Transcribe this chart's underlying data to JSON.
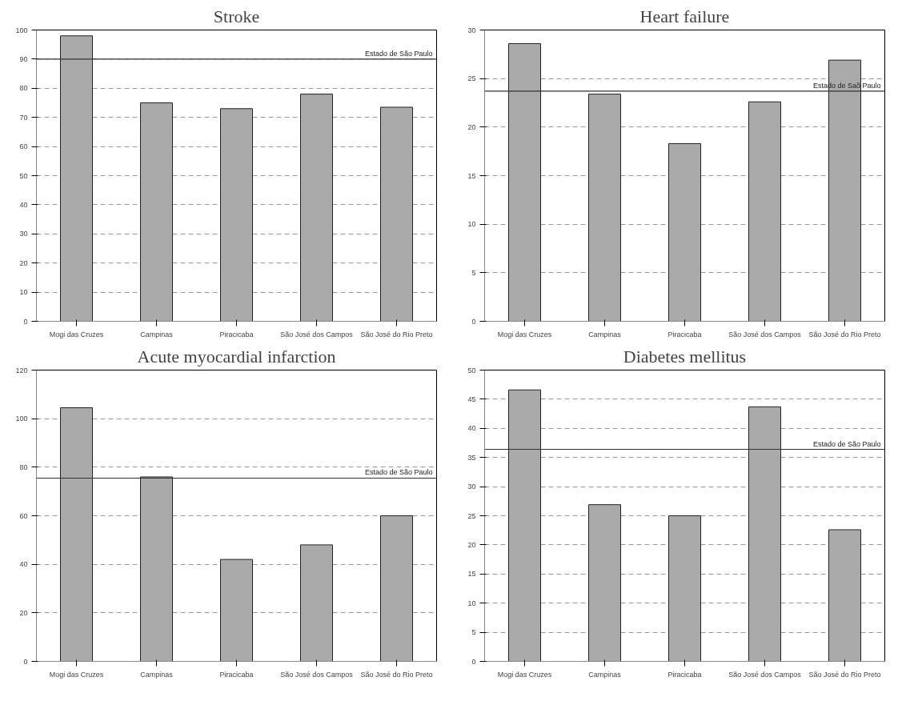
{
  "chart_data": [
    {
      "type": "bar",
      "title": "Stroke",
      "categories": [
        "Mogi das Cruzes",
        "Campinas",
        "Piracicaba",
        "São José dos Campos",
        "São José do Rio Preto"
      ],
      "values": [
        98,
        75,
        73,
        78,
        73.5
      ],
      "color": "#aaaaaa",
      "ylim": [
        0,
        100
      ],
      "yticks": [
        0,
        10,
        20,
        30,
        40,
        50,
        60,
        70,
        80,
        90,
        100
      ],
      "grid": "y",
      "ref_lines": [
        {
          "axis": "y",
          "value": 90,
          "label": "Estado de São Paulo",
          "color": "#333333"
        }
      ]
    },
    {
      "type": "bar",
      "title": "Heart failure",
      "categories": [
        "Mogi das Cruzes",
        "Campinas",
        "Piracicaba",
        "São José dos Campos",
        "São José do Rio Preto"
      ],
      "values": [
        28.6,
        23.4,
        18.3,
        22.6,
        26.9
      ],
      "color": "#aaaaaa",
      "ylim": [
        0,
        30
      ],
      "yticks": [
        0,
        5,
        10,
        15,
        20,
        25,
        30
      ],
      "grid": "y",
      "ref_lines": [
        {
          "axis": "y",
          "value": 23.7,
          "label": "Estado de Saõ Paulo",
          "color": "#333333"
        }
      ]
    },
    {
      "type": "bar",
      "title": "Acute myocardial infarction",
      "categories": [
        "Mogi das Cruzes",
        "Campinas",
        "Piracicaba",
        "São José dos Campos",
        "São José do Rio Preto"
      ],
      "values": [
        104.5,
        76,
        42,
        48,
        60
      ],
      "color": "#aaaaaa",
      "ylim": [
        0,
        120
      ],
      "yticks": [
        0,
        20,
        40,
        60,
        80,
        100,
        120
      ],
      "grid": "y",
      "ref_lines": [
        {
          "axis": "y",
          "value": 75.5,
          "label": "Estado de São Paulo",
          "color": "#333333"
        }
      ]
    },
    {
      "type": "bar",
      "title": "Diabetes mellitus",
      "categories": [
        "Mogi das Cruzes",
        "Campinas",
        "Piracicaba",
        "São José dos Campos",
        "São José do Rio Preto"
      ],
      "values": [
        46.6,
        26.9,
        25,
        43.7,
        22.6
      ],
      "color": "#aaaaaa",
      "ylim": [
        0,
        50
      ],
      "yticks": [
        0,
        5,
        10,
        15,
        20,
        25,
        30,
        35,
        40,
        45,
        50
      ],
      "grid": "y",
      "ref_lines": [
        {
          "axis": "y",
          "value": 36.4,
          "label": "Estado de São Paulo",
          "color": "#333333"
        }
      ]
    }
  ]
}
